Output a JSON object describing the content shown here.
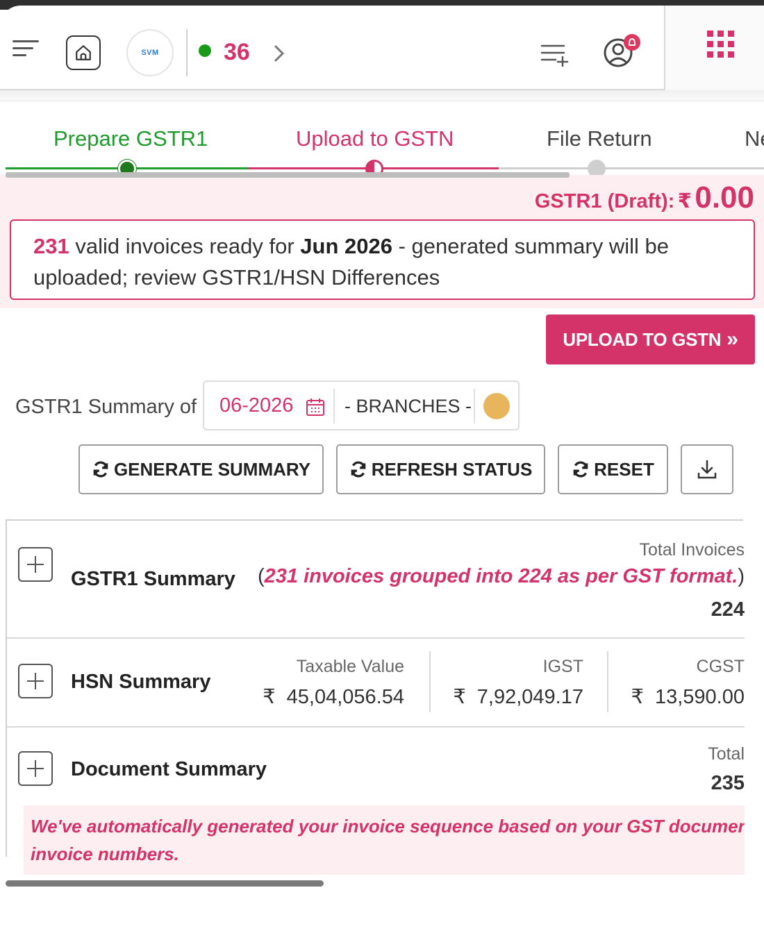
{
  "header": {
    "logo_text": "SVM",
    "status_count": "36",
    "icons": [
      "hamburger-menu-icon",
      "home-icon",
      "chevron-right-icon",
      "add-list-icon",
      "user-notification-icon",
      "apps-grid-icon"
    ]
  },
  "stepper": {
    "steps": [
      {
        "label": "Prepare GSTR1",
        "state": "done"
      },
      {
        "label": "Upload to GSTN",
        "state": "active"
      },
      {
        "label": "File Return",
        "state": "pending"
      },
      {
        "label": "Ne",
        "state": "pending"
      }
    ]
  },
  "draft": {
    "label": "GSTR1 (Draft):",
    "currency": "₹",
    "value": "0.00"
  },
  "notice": {
    "count": "231",
    "text_a": " valid invoices ready for ",
    "period": "Jun 2026",
    "text_b": " - generated summary will be uploaded; review GSTR1/HSN Differences"
  },
  "upload_button": {
    "label": "UPLOAD TO GSTN",
    "suffix": "»"
  },
  "filter": {
    "label": "GSTR1 Summary of",
    "period": "06-2026",
    "branches": "- BRANCHES -"
  },
  "actions": {
    "generate": "GENERATE SUMMARY",
    "refresh": "REFRESH STATUS",
    "reset": "RESET"
  },
  "gstr1_summary": {
    "title": "GSTR1 Summary",
    "total_label": "Total Invoices",
    "note": "231 invoices grouped into 224 as per GST format.",
    "total_value": "224"
  },
  "hsn_summary": {
    "title": "HSN Summary",
    "columns": [
      {
        "label": "Taxable Value",
        "currency": "₹",
        "value": "45,04,056.54"
      },
      {
        "label": "IGST",
        "currency": "₹",
        "value": "7,92,049.17"
      },
      {
        "label": "CGST",
        "currency": "₹",
        "value": "13,590.00"
      }
    ]
  },
  "document_summary": {
    "title": "Document Summary",
    "total_label": "Total",
    "total_value": "235",
    "auto_note_line1": "We've automatically generated your invoice sequence based on your GST document s",
    "auto_note_line2": "invoice numbers."
  },
  "colors": {
    "accent": "#d4336a",
    "success": "#1f9a2c",
    "pink_bg": "#fdeef2"
  }
}
